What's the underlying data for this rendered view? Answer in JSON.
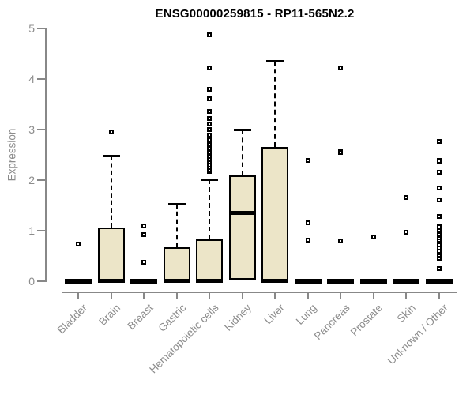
{
  "chart_data": {
    "type": "boxplot",
    "title": "ENSG00000259815 - RP11-565N2.2",
    "ylabel": "Expression",
    "xlabel": "",
    "ylim": [
      0,
      5
    ],
    "yticks": [
      0,
      1,
      2,
      3,
      4,
      5
    ],
    "grid": false,
    "legend": "none",
    "categories": [
      "Bladder",
      "Brain",
      "Breast",
      "Gastric",
      "Hematopoietic cells",
      "Kidney",
      "Liver",
      "Lung",
      "Pancreas",
      "Prostate",
      "Skin",
      "Unknown / Other"
    ],
    "boxes": [
      {
        "label": "Bladder",
        "whisker_low": 0,
        "q1": 0,
        "median": 0,
        "q3": 0,
        "whisker_high": 0,
        "outliers": [
          0.72
        ]
      },
      {
        "label": "Brain",
        "whisker_low": 0,
        "q1": 0,
        "median": 0,
        "q3": 1.05,
        "whisker_high": 2.48,
        "outliers": [
          2.95
        ]
      },
      {
        "label": "Breast",
        "whisker_low": 0,
        "q1": 0,
        "median": 0,
        "q3": 0,
        "whisker_high": 0,
        "outliers": [
          1.08,
          0.91,
          0.36
        ]
      },
      {
        "label": "Gastric",
        "whisker_low": 0,
        "q1": 0,
        "median": 0,
        "q3": 0.67,
        "whisker_high": 1.52,
        "outliers": []
      },
      {
        "label": "Hematopoietic cells",
        "whisker_low": 0,
        "q1": 0,
        "median": 0,
        "q3": 0.82,
        "whisker_high": 2.01,
        "outliers": [
          2.16,
          2.2,
          2.25,
          2.3,
          2.35,
          2.41,
          2.47,
          2.54,
          2.62,
          2.7,
          2.79,
          2.89,
          3.0,
          3.1,
          3.22,
          3.35,
          3.6,
          3.79,
          4.22,
          4.87
        ]
      },
      {
        "label": "Kidney",
        "whisker_low": 0,
        "q1": 0.02,
        "median": 1.35,
        "q3": 2.09,
        "whisker_high": 3.0,
        "outliers": []
      },
      {
        "label": "Liver",
        "whisker_low": 0,
        "q1": 0,
        "median": 0,
        "q3": 2.66,
        "whisker_high": 4.36,
        "outliers": []
      },
      {
        "label": "Lung",
        "whisker_low": 0,
        "q1": 0,
        "median": 0,
        "q3": 0,
        "whisker_high": 0,
        "outliers": [
          2.38,
          1.15,
          0.8
        ]
      },
      {
        "label": "Pancreas",
        "whisker_low": 0,
        "q1": 0,
        "median": 0,
        "q3": 0,
        "whisker_high": 0,
        "outliers": [
          4.22,
          2.58,
          2.54,
          0.79
        ]
      },
      {
        "label": "Prostate",
        "whisker_low": 0,
        "q1": 0,
        "median": 0,
        "q3": 0,
        "whisker_high": 0,
        "outliers": [
          0.87
        ]
      },
      {
        "label": "Skin",
        "whisker_low": 0,
        "q1": 0,
        "median": 0,
        "q3": 0,
        "whisker_high": 0,
        "outliers": [
          1.65,
          0.97
        ]
      },
      {
        "label": "Unknown / Other",
        "whisker_low": 0,
        "q1": 0,
        "median": 0,
        "q3": 0,
        "whisker_high": 0,
        "outliers": [
          2.76,
          2.39,
          2.37,
          2.15,
          1.84,
          1.6,
          1.27,
          1.07,
          0.99,
          0.95,
          0.91,
          0.87,
          0.83,
          0.79,
          0.75,
          0.71,
          0.65,
          0.58,
          0.5,
          0.44,
          0.25
        ]
      }
    ],
    "colors": {
      "box_fill": "#ece5c8",
      "box_border": "#000000",
      "median": "#000000",
      "outlier": "#000000",
      "axis": "#888888",
      "tick_label": "#8c8c8c",
      "title": "#000000"
    }
  }
}
